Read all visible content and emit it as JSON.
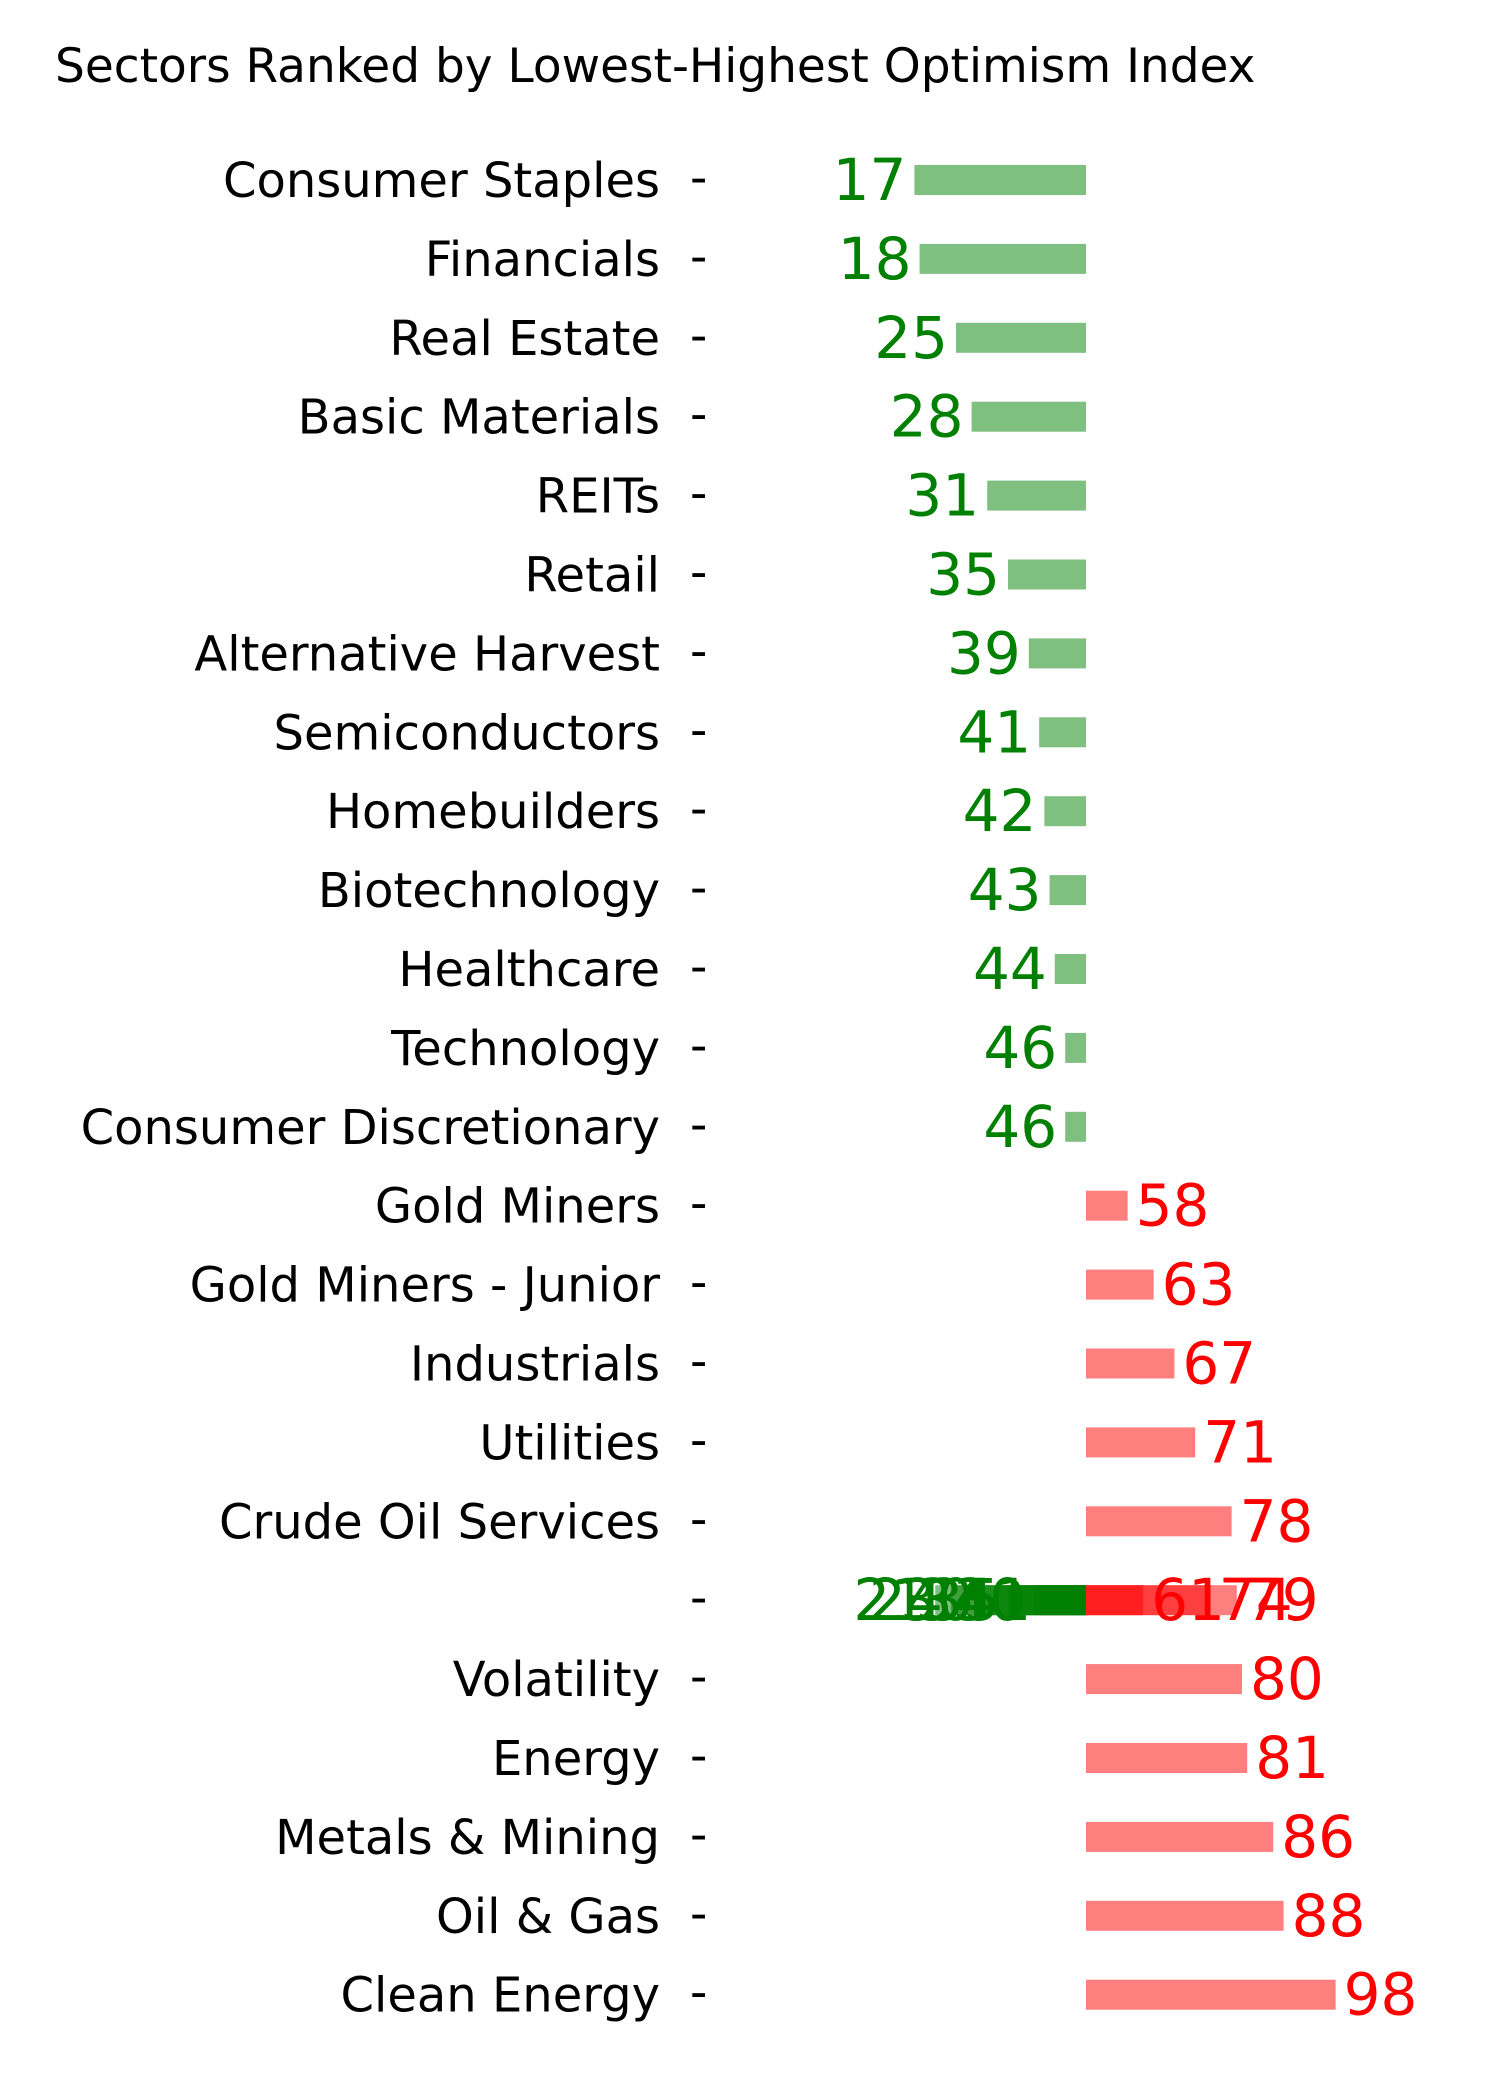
{
  "chart_data": {
    "type": "bar",
    "orientation": "horizontal",
    "title": "Sectors Ranked by Lowest-Highest Optimism Index",
    "xlabel": "",
    "ylabel": "",
    "grid": false,
    "center_value": 50,
    "xlim": [
      0,
      100
    ],
    "colors": {
      "low": "#008000",
      "high": "#ff0000"
    },
    "categories": [
      "Consumer Staples",
      "Financials",
      "Real Estate",
      "Basic Materials",
      "REITs",
      "Retail",
      "Alternative Harvest",
      "Semiconductors",
      "Homebuilders",
      "Biotechnology",
      "Healthcare",
      "Technology",
      "Consumer Discretionary",
      "Gold Miners",
      "Gold Miners - Junior",
      "Industrials",
      "Utilities",
      "Crude Oil Services",
      "",
      "Volatility",
      "Energy",
      "Metals & Mining",
      "Oil & Gas",
      "Clean Energy"
    ],
    "values": [
      17,
      18,
      25,
      28,
      31,
      35,
      39,
      41,
      42,
      43,
      44,
      46,
      46,
      58,
      63,
      67,
      71,
      78,
      null,
      80,
      81,
      86,
      88,
      98
    ],
    "overlap_row": {
      "row_index": 18,
      "values": [
        21,
        24,
        30,
        33,
        35,
        40,
        41,
        61,
        74,
        79
      ],
      "value_labels": [
        "21",
        "24",
        "30",
        "33",
        "35",
        "40",
        "41",
        "61",
        "74",
        "79"
      ]
    },
    "value_labels": [
      "17",
      "18",
      "25",
      "28",
      "31",
      "35",
      "39",
      "41",
      "42",
      "43",
      "44",
      "46",
      "46",
      "58",
      "63",
      "67",
      "71",
      "78",
      "",
      "80",
      "81",
      "86",
      "88",
      "98"
    ]
  }
}
